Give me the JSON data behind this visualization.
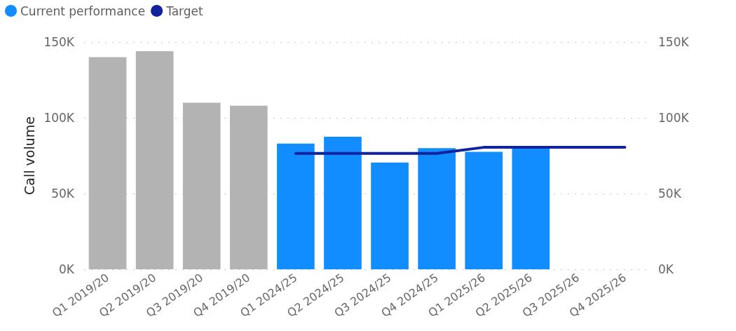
{
  "chart_data": {
    "type": "bar",
    "ylabel": "Call volume",
    "categories": [
      "Q1 2019/20",
      "Q2 2019/20",
      "Q3 2019/20",
      "Q4 2019/20",
      "Q1 2024/25",
      "Q2 2024/25",
      "Q3 2024/25",
      "Q4 2024/25",
      "Q1 2025/26",
      "Q2 2025/26",
      "Q3 2025/26",
      "Q4 2025/26"
    ],
    "series": [
      {
        "name": "Current performance",
        "color": "#118dff",
        "colors": [
          "#b3b3b3",
          "#b3b3b3",
          "#b3b3b3",
          "#b3b3b3",
          "#118dff",
          "#118dff",
          "#118dff",
          "#118dff",
          "#118dff",
          "#118dff",
          "#118dff",
          "#118dff"
        ],
        "values": [
          140000,
          144000,
          110000,
          108000,
          83000,
          87500,
          70500,
          80000,
          77500,
          80000,
          null,
          null
        ]
      },
      {
        "name": "Target",
        "type": "line",
        "color": "#12239e",
        "values": [
          null,
          null,
          null,
          null,
          76500,
          76500,
          76500,
          76500,
          80500,
          80500,
          80500,
          80500
        ]
      }
    ],
    "ylim": [
      0,
      150000
    ],
    "yticks": [
      {
        "value": 0,
        "label": "0K"
      },
      {
        "value": 50000,
        "label": "50K"
      },
      {
        "value": 100000,
        "label": "100K"
      },
      {
        "value": 150000,
        "label": "150K"
      }
    ],
    "y2lim": [
      0,
      150000
    ],
    "y2ticks": [
      {
        "value": 0,
        "label": "0K"
      },
      {
        "value": 50000,
        "label": "50K"
      },
      {
        "value": 100000,
        "label": "100K"
      },
      {
        "value": 150000,
        "label": "150K"
      }
    ],
    "grid": "y",
    "legend": "top left",
    "marker": "none",
    "line_style": "solid"
  }
}
